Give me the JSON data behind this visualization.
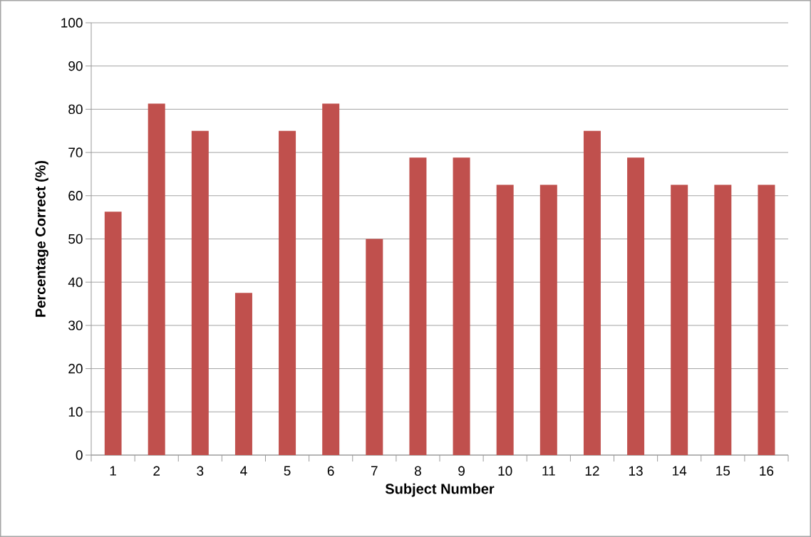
{
  "chart_data": {
    "type": "bar",
    "xlabel": "Subject Number",
    "ylabel": "Percentage Correct (%)",
    "categories": [
      "1",
      "2",
      "3",
      "4",
      "5",
      "6",
      "7",
      "8",
      "9",
      "10",
      "11",
      "12",
      "13",
      "14",
      "15",
      "16"
    ],
    "values": [
      56.3,
      81.3,
      75,
      37.5,
      75,
      81.3,
      50,
      68.8,
      68.8,
      62.5,
      62.5,
      75,
      68.8,
      62.5,
      62.5,
      62.5
    ],
    "color": "#c0504d",
    "ylim": [
      0,
      100
    ],
    "yticks": [
      0,
      10,
      20,
      30,
      40,
      50,
      60,
      70,
      80,
      90,
      100
    ],
    "grid": "y"
  }
}
